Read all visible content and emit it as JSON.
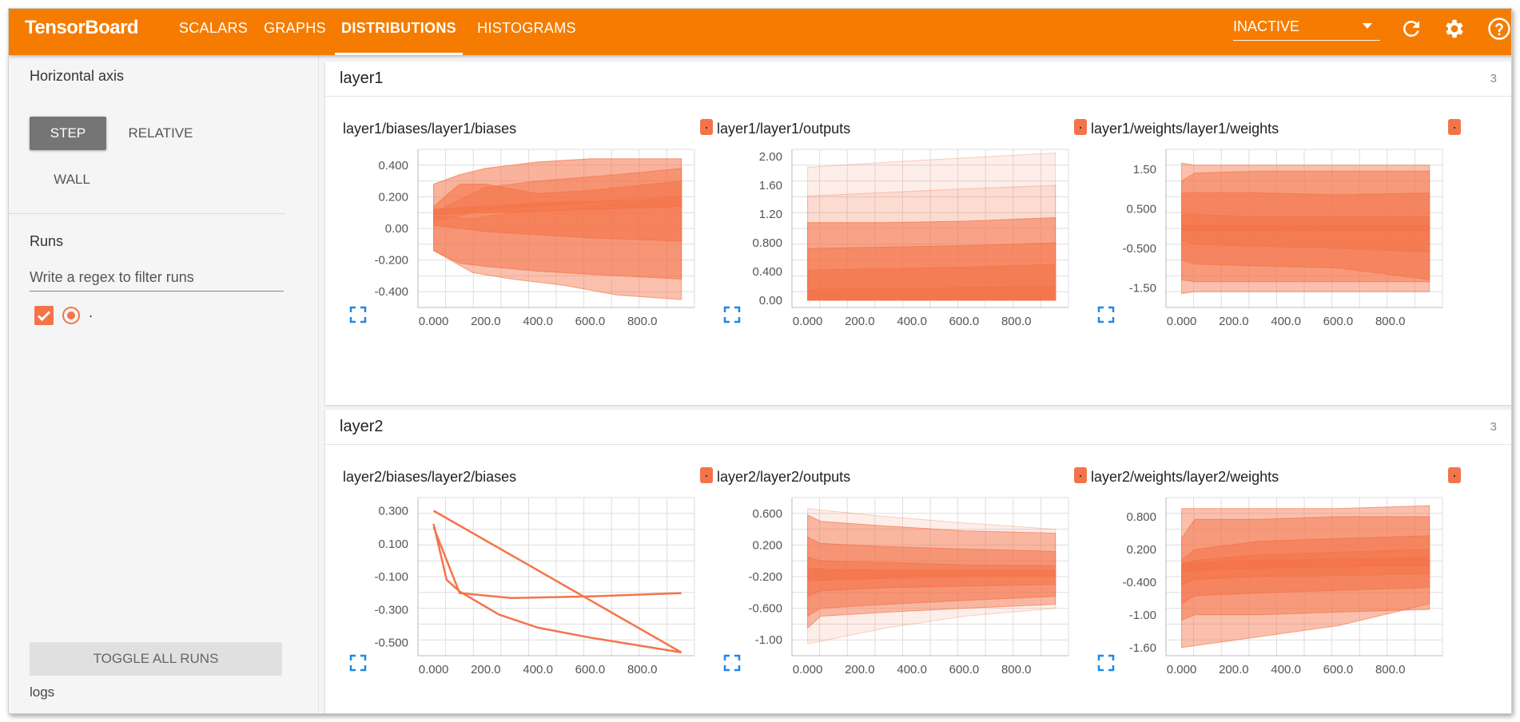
{
  "header": {
    "brand": "TensorBoard",
    "tabs": [
      {
        "label": "SCALARS",
        "active": false
      },
      {
        "label": "GRAPHS",
        "active": false
      },
      {
        "label": "DISTRIBUTIONS",
        "active": true
      },
      {
        "label": "HISTOGRAMS",
        "active": false
      }
    ],
    "run_select_value": "INACTIVE",
    "icons": [
      "refresh-icon",
      "settings-icon",
      "help-icon"
    ],
    "accent_color": "#f57c00"
  },
  "sidebar": {
    "horizontal_axis_label": "Horizontal axis",
    "axis_options": [
      {
        "label": "STEP",
        "selected": true
      },
      {
        "label": "RELATIVE",
        "selected": false
      },
      {
        "label": "WALL",
        "selected": false
      }
    ],
    "runs_label": "Runs",
    "filter_placeholder": "Write a regex to filter runs",
    "filter_value": "",
    "runs": [
      {
        "name": ".",
        "checked": true,
        "color": "#f4744a"
      }
    ],
    "toggle_all_label": "TOGGLE ALL RUNS",
    "logdir": "logs"
  },
  "groups": [
    {
      "title": "layer1",
      "count": "3"
    },
    {
      "title": "layer2",
      "count": "3"
    }
  ],
  "chart_data": [
    {
      "type": "area",
      "title": "layer1/biases/layer1/biases",
      "x_ticks": [
        "0.000",
        "200.0",
        "400.0",
        "600.0",
        "800.0"
      ],
      "y_ticks": [
        "0.400",
        "0.200",
        "0.00",
        "-0.200",
        "-0.400"
      ],
      "xlim": [
        -60,
        1000
      ],
      "ylim": [
        -0.5,
        0.5
      ],
      "bands": [
        {
          "opacity": 0.55,
          "x": [
            0,
            100,
            200,
            400,
            600,
            950
          ],
          "lo": [
            -0.14,
            -0.22,
            -0.24,
            -0.27,
            -0.29,
            -0.32
          ],
          "hi": [
            0.28,
            0.34,
            0.38,
            0.42,
            0.44,
            0.44
          ]
        },
        {
          "opacity": 0.6,
          "x": [
            0,
            100,
            200,
            400,
            600,
            950
          ],
          "lo": [
            0.02,
            0.0,
            -0.02,
            -0.04,
            -0.06,
            -0.08
          ],
          "hi": [
            0.14,
            0.28,
            0.28,
            0.22,
            0.24,
            0.3
          ]
        },
        {
          "opacity": 0.45,
          "x": [
            0,
            150,
            300,
            500,
            700,
            950
          ],
          "lo": [
            -0.14,
            -0.28,
            -0.32,
            -0.36,
            -0.42,
            -0.45
          ],
          "hi": [
            0.08,
            0.06,
            0.1,
            0.12,
            0.15,
            0.18
          ]
        },
        {
          "opacity": 0.5,
          "x": [
            0,
            100,
            200,
            400,
            700,
            950
          ],
          "lo": [
            0.05,
            0.08,
            0.12,
            0.14,
            0.18,
            0.2
          ],
          "hi": [
            0.1,
            0.18,
            0.26,
            0.3,
            0.34,
            0.38
          ]
        },
        {
          "opacity": 0.75,
          "x": [
            0,
            200,
            400,
            600,
            800,
            950
          ],
          "lo": [
            0.09,
            0.1,
            0.11,
            0.12,
            0.13,
            0.14
          ],
          "hi": [
            0.12,
            0.14,
            0.16,
            0.17,
            0.18,
            0.2
          ]
        }
      ]
    },
    {
      "type": "area",
      "title": "layer1/layer1/outputs",
      "x_ticks": [
        "0.000",
        "200.0",
        "400.0",
        "600.0",
        "800.0"
      ],
      "y_ticks": [
        "2.00",
        "1.60",
        "1.20",
        "0.800",
        "0.400",
        "0.00"
      ],
      "xlim": [
        -60,
        1000
      ],
      "ylim": [
        -0.1,
        2.1
      ],
      "bands": [
        {
          "opacity": 0.12,
          "x": [
            0,
            300,
            600,
            950
          ],
          "lo": [
            0.0,
            0.0,
            0.0,
            0.0
          ],
          "hi": [
            1.85,
            1.92,
            1.98,
            2.05
          ]
        },
        {
          "opacity": 0.15,
          "x": [
            0,
            300,
            600,
            950
          ],
          "lo": [
            0.0,
            0.0,
            0.0,
            0.0
          ],
          "hi": [
            1.45,
            1.5,
            1.55,
            1.6
          ]
        },
        {
          "opacity": 0.55,
          "x": [
            0,
            300,
            600,
            950
          ],
          "lo": [
            0.0,
            0.0,
            0.0,
            0.0
          ],
          "hi": [
            1.08,
            1.08,
            1.1,
            1.15
          ]
        },
        {
          "opacity": 0.55,
          "x": [
            0,
            300,
            600,
            950
          ],
          "lo": [
            0.0,
            0.0,
            0.0,
            0.0
          ],
          "hi": [
            0.72,
            0.74,
            0.76,
            0.8
          ]
        },
        {
          "opacity": 0.6,
          "x": [
            0,
            300,
            600,
            950
          ],
          "lo": [
            0.0,
            0.0,
            0.0,
            0.0
          ],
          "hi": [
            0.42,
            0.44,
            0.46,
            0.5
          ]
        },
        {
          "opacity": 0.7,
          "x": [
            0,
            300,
            600,
            950
          ],
          "lo": [
            0.0,
            0.0,
            0.0,
            0.0
          ],
          "hi": [
            0.15,
            0.16,
            0.18,
            0.2
          ]
        }
      ]
    },
    {
      "type": "area",
      "title": "layer1/weights/layer1/weights",
      "x_ticks": [
        "0.000",
        "200.0",
        "400.0",
        "600.0",
        "800.0"
      ],
      "y_ticks": [
        "1.50",
        "0.500",
        "-0.500",
        "-1.50"
      ],
      "xlim": [
        -60,
        1000
      ],
      "ylim": [
        -2.0,
        2.0
      ],
      "bands": [
        {
          "opacity": 0.45,
          "x": [
            0,
            50,
            300,
            600,
            950
          ],
          "lo": [
            -1.65,
            -1.6,
            -1.6,
            -1.6,
            -1.6
          ],
          "hi": [
            1.65,
            1.6,
            1.6,
            1.6,
            1.6
          ]
        },
        {
          "opacity": 0.5,
          "x": [
            0,
            50,
            300,
            600,
            950
          ],
          "lo": [
            -1.3,
            -1.35,
            -1.35,
            -1.35,
            -1.35
          ],
          "hi": [
            1.2,
            1.4,
            1.45,
            1.45,
            1.45
          ]
        },
        {
          "opacity": 0.55,
          "x": [
            0,
            50,
            300,
            600,
            950
          ],
          "lo": [
            -0.8,
            -0.9,
            -0.95,
            -1.0,
            -1.3
          ],
          "hi": [
            0.9,
            0.9,
            0.9,
            0.85,
            0.9
          ]
        },
        {
          "opacity": 0.6,
          "x": [
            0,
            50,
            300,
            600,
            950
          ],
          "lo": [
            -0.3,
            -0.4,
            -0.45,
            -0.5,
            -0.6
          ],
          "hi": [
            0.35,
            0.35,
            0.3,
            0.3,
            0.3
          ]
        },
        {
          "opacity": 0.8,
          "x": [
            0,
            300,
            600,
            950
          ],
          "lo": [
            -0.05,
            -0.05,
            -0.06,
            -0.06
          ],
          "hi": [
            0.08,
            0.08,
            0.07,
            0.07
          ]
        }
      ]
    },
    {
      "type": "line",
      "title": "layer2/biases/layer2/biases",
      "x_ticks": [
        "0.000",
        "200.0",
        "400.0",
        "600.0",
        "800.0"
      ],
      "y_ticks": [
        "0.300",
        "0.100",
        "-0.100",
        "-0.300",
        "-0.500"
      ],
      "xlim": [
        -60,
        1000
      ],
      "ylim": [
        -0.58,
        0.38
      ],
      "series": [
        {
          "x": [
            0,
            950
          ],
          "y": [
            0.3,
            -0.56
          ]
        },
        {
          "x": [
            0,
            50,
            100,
            250,
            400,
            600,
            950
          ],
          "y": [
            0.22,
            -0.12,
            -0.19,
            -0.33,
            -0.41,
            -0.47,
            -0.56
          ]
        },
        {
          "x": [
            0,
            100,
            300,
            600,
            950
          ],
          "y": [
            0.2,
            -0.2,
            -0.23,
            -0.22,
            -0.2
          ]
        }
      ]
    },
    {
      "type": "area",
      "title": "layer2/layer2/outputs",
      "x_ticks": [
        "0.000",
        "200.0",
        "400.0",
        "600.0",
        "800.0"
      ],
      "y_ticks": [
        "0.600",
        "0.200",
        "-0.200",
        "-0.600",
        "-1.00"
      ],
      "xlim": [
        -60,
        1000
      ],
      "ylim": [
        -1.2,
        0.8
      ],
      "bands": [
        {
          "opacity": 0.12,
          "x": [
            0,
            300,
            600,
            950
          ],
          "lo": [
            -1.05,
            -0.85,
            -0.7,
            -0.6
          ],
          "hi": [
            0.66,
            0.56,
            0.48,
            0.4
          ]
        },
        {
          "opacity": 0.45,
          "x": [
            0,
            50,
            300,
            600,
            950
          ],
          "lo": [
            -0.85,
            -0.7,
            -0.65,
            -0.6,
            -0.55
          ],
          "hi": [
            0.58,
            0.5,
            0.44,
            0.38,
            0.35
          ]
        },
        {
          "opacity": 0.5,
          "x": [
            0,
            50,
            300,
            600,
            950
          ],
          "lo": [
            -0.7,
            -0.6,
            -0.55,
            -0.5,
            -0.45
          ],
          "hi": [
            0.3,
            0.22,
            0.18,
            0.15,
            0.12
          ]
        },
        {
          "opacity": 0.55,
          "x": [
            0,
            50,
            300,
            600,
            950
          ],
          "lo": [
            -0.45,
            -0.38,
            -0.34,
            -0.32,
            -0.3
          ],
          "hi": [
            0.05,
            0.0,
            -0.02,
            -0.05,
            -0.06
          ]
        },
        {
          "opacity": 0.7,
          "x": [
            0,
            300,
            600,
            950
          ],
          "lo": [
            -0.25,
            -0.22,
            -0.2,
            -0.2
          ],
          "hi": [
            -0.1,
            -0.12,
            -0.12,
            -0.12
          ]
        }
      ]
    },
    {
      "type": "area",
      "title": "layer2/weights/layer2/weights",
      "x_ticks": [
        "0.000",
        "200.0",
        "400.0",
        "600.0",
        "800.0"
      ],
      "y_ticks": [
        "0.800",
        "0.200",
        "-0.400",
        "-1.00",
        "-1.60"
      ],
      "xlim": [
        -60,
        1000
      ],
      "ylim": [
        -1.75,
        1.15
      ],
      "bands": [
        {
          "opacity": 0.45,
          "x": [
            0,
            300,
            600,
            950
          ],
          "lo": [
            -1.6,
            -1.4,
            -1.2,
            -0.8
          ],
          "hi": [
            0.95,
            0.95,
            0.95,
            1.0
          ]
        },
        {
          "opacity": 0.5,
          "x": [
            0,
            50,
            300,
            600,
            950
          ],
          "lo": [
            -1.1,
            -1.0,
            -1.0,
            -0.95,
            -0.9
          ],
          "hi": [
            0.4,
            0.75,
            0.75,
            0.8,
            0.8
          ]
        },
        {
          "opacity": 0.55,
          "x": [
            0,
            50,
            300,
            600,
            950
          ],
          "lo": [
            -0.8,
            -0.65,
            -0.6,
            -0.55,
            -0.5
          ],
          "hi": [
            0.0,
            0.2,
            0.35,
            0.4,
            0.45
          ]
        },
        {
          "opacity": 0.6,
          "x": [
            0,
            50,
            300,
            600,
            950
          ],
          "lo": [
            -0.45,
            -0.35,
            -0.3,
            -0.28,
            -0.25
          ],
          "hi": [
            -0.1,
            0.0,
            0.1,
            0.15,
            0.2
          ]
        },
        {
          "opacity": 0.8,
          "x": [
            0,
            300,
            600,
            950
          ],
          "lo": [
            -0.2,
            -0.15,
            -0.12,
            -0.1
          ],
          "hi": [
            -0.05,
            0.0,
            0.02,
            0.05
          ]
        }
      ]
    }
  ]
}
